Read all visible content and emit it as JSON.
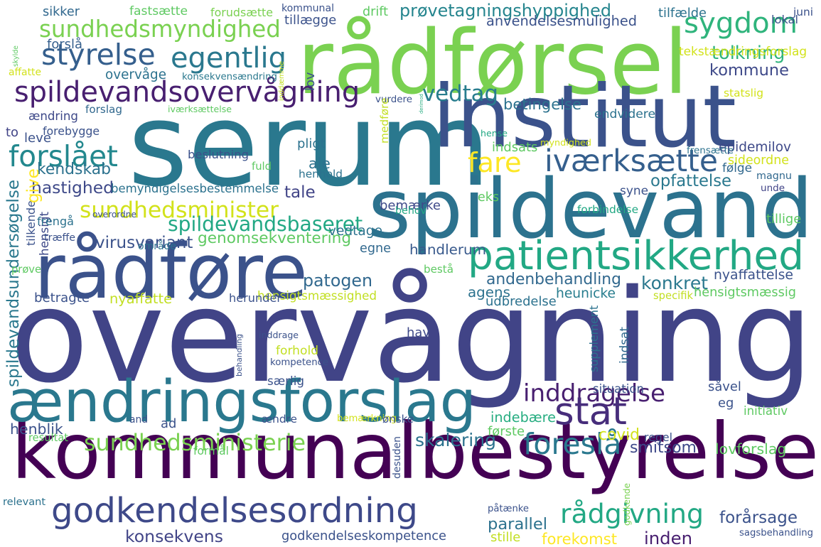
{
  "words": [
    {
      "t": "overvågning",
      "c": "#414487"
    },
    {
      "t": "serum",
      "c": "#2a788e"
    },
    {
      "t": "kommunalbestyrelse",
      "c": "#440154"
    },
    {
      "t": "rådførsel",
      "c": "#7ad151"
    },
    {
      "t": "institut",
      "c": "#3b528b"
    },
    {
      "t": "spildevand",
      "c": "#2c728e"
    },
    {
      "t": "rådføre",
      "c": "#3b528b"
    },
    {
      "t": "ændringsforslag",
      "c": "#2a788e"
    },
    {
      "t": "patientsikkerhed",
      "c": "#22a884"
    },
    {
      "t": "godkendelsesordning",
      "c": "#3e4989"
    },
    {
      "t": "spildevandsovervågning",
      "c": "#481f70"
    },
    {
      "t": "sundhedsmyndighed",
      "c": "#7ad151"
    },
    {
      "t": "sygdom",
      "c": "#2fb47c"
    },
    {
      "t": "styrelse",
      "c": "#355f8d"
    },
    {
      "t": "egentlig",
      "c": "#2a788e"
    },
    {
      "t": "prøvetagningshyppighed",
      "c": "#25858e"
    },
    {
      "t": "anvendelsesmulighed",
      "c": "#3b528b"
    },
    {
      "t": "kommune",
      "c": "#3e4989"
    },
    {
      "t": "tolkning",
      "c": "#2fb47c"
    },
    {
      "t": "tekstændringsforslag",
      "c": "#d2e21b"
    },
    {
      "t": "vedtag",
      "c": "#287d8e"
    },
    {
      "t": "betingelse",
      "c": "#2c728e"
    },
    {
      "t": "forslået",
      "c": "#23888e"
    },
    {
      "t": "kendskab",
      "c": "#2c728e"
    },
    {
      "t": "fare",
      "c": "#fde725"
    },
    {
      "t": "iværksætte",
      "c": "#355f8d"
    },
    {
      "t": "epidemilov",
      "c": "#3e4989"
    },
    {
      "t": "sideordne",
      "c": "#d2e21b"
    },
    {
      "t": "opfattelse",
      "c": "#2a788e"
    },
    {
      "t": "magnu",
      "c": "#31688e"
    },
    {
      "t": "hastighed",
      "c": "#3e4989"
    },
    {
      "t": "bemyndigelsesbestemmelse",
      "c": "#2c728e"
    },
    {
      "t": "tale",
      "c": "#414487"
    },
    {
      "t": "bemærke",
      "c": "#3e4989"
    },
    {
      "t": "sundhedsminister",
      "c": "#d2e21b"
    },
    {
      "t": "spildevandsbaseret",
      "c": "#22a884"
    },
    {
      "t": "vedtage",
      "c": "#2c728e"
    },
    {
      "t": "virusvariant",
      "c": "#3b528b"
    },
    {
      "t": "genomsekventering",
      "c": "#5ec962"
    },
    {
      "t": "egne",
      "c": "#31688e"
    },
    {
      "t": "handlerum",
      "c": "#38598c"
    },
    {
      "t": "patogen",
      "c": "#31688e"
    },
    {
      "t": "andenbehandling",
      "c": "#31688e"
    },
    {
      "t": "konkret",
      "c": "#2a788e"
    },
    {
      "t": "agens",
      "c": "#2c728e"
    },
    {
      "t": "nyaffattelse",
      "c": "#3b528b"
    },
    {
      "t": "hensigtsmæssighed",
      "c": "#c2df23"
    },
    {
      "t": "hensigtsmæssig",
      "c": "#5ec962"
    },
    {
      "t": "heunicke",
      "c": "#287d8e"
    },
    {
      "t": "udbredelse",
      "c": "#2c728e"
    },
    {
      "t": "nyaffatte",
      "c": "#c2df23"
    },
    {
      "t": "inddragelse",
      "c": "#481f70"
    },
    {
      "t": "stat",
      "c": "#472d7b"
    },
    {
      "t": "indebære",
      "c": "#27ad81"
    },
    {
      "t": "foreslå",
      "c": "#2a788e"
    },
    {
      "t": "smitsom",
      "c": "#3e4989"
    },
    {
      "t": "sundhedsministerie",
      "c": "#7ad151"
    },
    {
      "t": "skalering",
      "c": "#2c728e"
    },
    {
      "t": "rådgivning",
      "c": "#22a884"
    },
    {
      "t": "konsekvens",
      "c": "#414487"
    },
    {
      "t": "godkendelseskompetence",
      "c": "#3b528b"
    },
    {
      "t": "parallel",
      "c": "#2c728e"
    },
    {
      "t": "forekomst",
      "c": "#fde725"
    },
    {
      "t": "inden",
      "c": "#481f70"
    },
    {
      "t": "forårsage",
      "c": "#3b528b"
    },
    {
      "t": "covid",
      "c": "#d2e21b"
    },
    {
      "t": "lovforslag",
      "c": "#5ec962"
    },
    {
      "t": "spildevandsundersøgelse",
      "c": "#2a788e"
    },
    {
      "t": "tilkende",
      "c": "#3b528b"
    },
    {
      "t": "give",
      "c": "#fde725"
    },
    {
      "t": "sikker",
      "c": "#31688e"
    },
    {
      "t": "fastsætte",
      "c": "#5ec962"
    },
    {
      "t": "forudsætte",
      "c": "#7ad151"
    },
    {
      "t": "kommunal",
      "c": "#3b528b"
    },
    {
      "t": "tillægge",
      "c": "#3b528b"
    },
    {
      "t": "drift",
      "c": "#5ec962"
    },
    {
      "t": "tilfælde",
      "c": "#2c728e"
    },
    {
      "t": "lokal",
      "c": "#3b528b"
    },
    {
      "t": "juni",
      "c": "#3b528b"
    },
    {
      "t": "skylde",
      "c": "#5ec962"
    },
    {
      "t": "forslå",
      "c": "#355f8d"
    },
    {
      "t": "affatte",
      "c": "#d2e21b"
    },
    {
      "t": "overvåge",
      "c": "#2c728e"
    },
    {
      "t": "konsekvensændring",
      "c": "#2a788e"
    },
    {
      "t": "inddæmme",
      "c": "#c2df23"
    },
    {
      "t": "lov",
      "c": "#3b528b"
    },
    {
      "t": "derimod",
      "c": "#27ad81"
    },
    {
      "t": "endvidere",
      "c": "#2c728e"
    },
    {
      "t": "statslig",
      "c": "#d2e21b"
    },
    {
      "t": "ændring",
      "c": "#3e4989"
    },
    {
      "t": "forslag",
      "c": "#31688e"
    },
    {
      "t": "iværksættelse",
      "c": "#5ec962"
    },
    {
      "t": "vurdere",
      "c": "#3b528b"
    },
    {
      "t": "to",
      "c": "#414487"
    },
    {
      "t": "leve",
      "c": "#3b528b"
    },
    {
      "t": "forebygge",
      "c": "#3b528b"
    },
    {
      "t": "medføre",
      "c": "#c2df23"
    },
    {
      "t": "hense",
      "c": "#22a884"
    },
    {
      "t": "pligt",
      "c": "#2c728e"
    },
    {
      "t": "beslutning",
      "c": "#3b528b"
    },
    {
      "t": "indsats",
      "c": "#5ec962"
    },
    {
      "t": "myndighed",
      "c": "#d2e21b"
    },
    {
      "t": "frensætte",
      "c": "#2c728e"
    },
    {
      "t": "følge",
      "c": "#31688e"
    },
    {
      "t": "ale",
      "c": "#2c728e"
    },
    {
      "t": "fuld",
      "c": "#5ec962"
    },
    {
      "t": "henhold",
      "c": "#2c728e"
    },
    {
      "t": "syne",
      "c": "#3b528b"
    },
    {
      "t": "unde",
      "c": "#414487"
    },
    {
      "t": "forbindelse",
      "c": "#22a884"
    },
    {
      "t": "eks",
      "c": "#5ec962"
    },
    {
      "t": "behov",
      "c": "#22a884"
    },
    {
      "t": "tillige",
      "c": "#5ec962"
    },
    {
      "t": "hensigt",
      "c": "#3e4989"
    },
    {
      "t": "overordne",
      "c": "#3b528b"
    },
    {
      "t": "træffe",
      "c": "#3b528b"
    },
    {
      "t": "område",
      "c": "#2c728e"
    },
    {
      "t": "frengå",
      "c": "#2c728e"
    },
    {
      "t": "prøve",
      "c": "#5ec962"
    },
    {
      "t": "bestå",
      "c": "#5ec962"
    },
    {
      "t": "betragte",
      "c": "#3b528b"
    },
    {
      "t": "herunder",
      "c": "#3b528b"
    },
    {
      "t": "specifik",
      "c": "#c2df23"
    },
    {
      "t": "hav",
      "c": "#3e4989"
    },
    {
      "t": "indsat",
      "c": "#31688e"
    },
    {
      "t": "supplement",
      "c": "#2c728e"
    },
    {
      "t": "inddrage",
      "c": "#3b528b"
    },
    {
      "t": "forhold",
      "c": "#c2df23"
    },
    {
      "t": "kompetence",
      "c": "#3b528b"
    },
    {
      "t": "behandling",
      "c": "#3b528b"
    },
    {
      "t": "særlig",
      "c": "#3b528b"
    },
    {
      "t": "såvel",
      "c": "#3b528b"
    },
    {
      "t": "situation",
      "c": "#3b528b"
    },
    {
      "t": "eg",
      "c": "#3b528b"
    },
    {
      "t": "initiativ",
      "c": "#5ec962"
    },
    {
      "t": "henblik",
      "c": "#3b528b"
    },
    {
      "t": "and",
      "c": "#3b528b"
    },
    {
      "t": "ad",
      "c": "#3b528b"
    },
    {
      "t": "ændre",
      "c": "#3b528b"
    },
    {
      "t": "bemærkning",
      "c": "#d2e21b"
    },
    {
      "t": "ønske",
      "c": "#3b528b"
    },
    {
      "t": "resultat",
      "c": "#5ec962"
    },
    {
      "t": "formål",
      "c": "#5ec962"
    },
    {
      "t": "desuden",
      "c": "#3b528b"
    },
    {
      "t": "første",
      "c": "#5ec962"
    },
    {
      "t": "regel",
      "c": "#3b528b"
    },
    {
      "t": "godkende",
      "c": "#7ad151"
    },
    {
      "t": "relevant",
      "c": "#2c728e"
    },
    {
      "t": "påtænke",
      "c": "#3b528b"
    },
    {
      "t": "stille",
      "c": "#c2df23"
    },
    {
      "t": "sagsbehandling",
      "c": "#3b528b"
    }
  ]
}
